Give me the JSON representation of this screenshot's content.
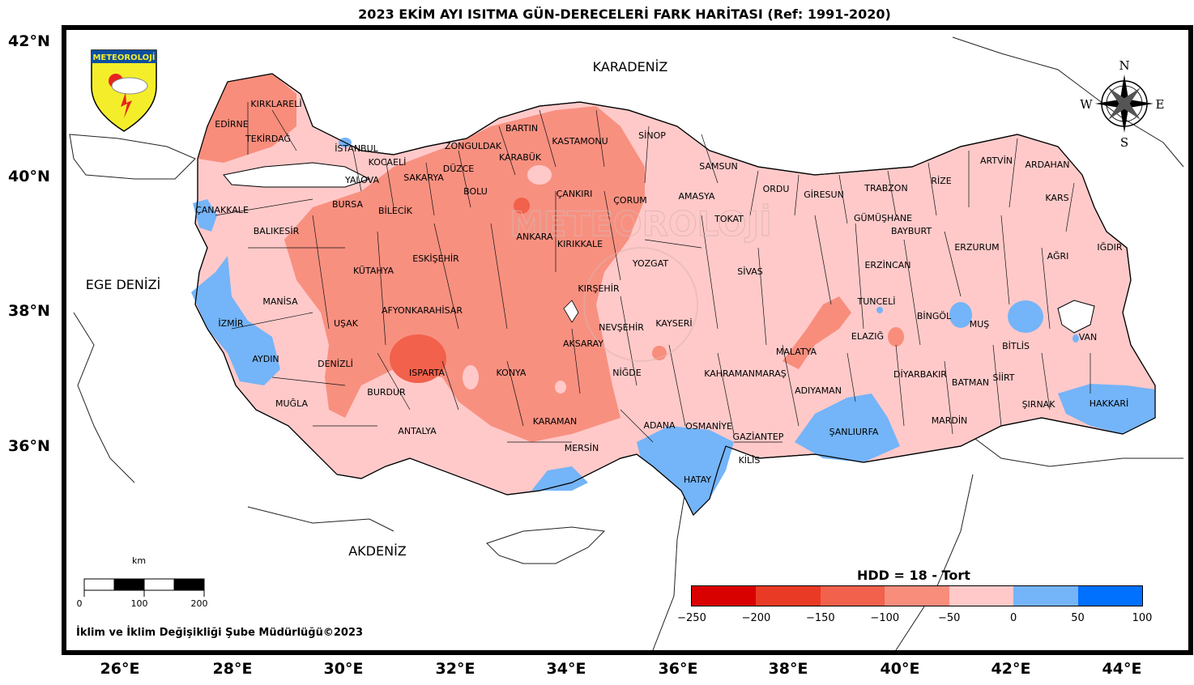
{
  "title": "2023 EKİM AYI ISITMA GÜN-DERECELERİ FARK HARİTASI (Ref: 1991-2020)",
  "logo_text": "METEOROLOJİ",
  "watermark": "METEOROLOJİ",
  "lat_labels": [
    "42°N",
    "40°N",
    "38°N",
    "36°N"
  ],
  "lon_labels": [
    "26°E",
    "28°E",
    "30°E",
    "32°E",
    "34°E",
    "36°E",
    "38°E",
    "40°E",
    "42°E",
    "44°E"
  ],
  "seas": {
    "black_sea": "KARADENİZ",
    "aegean": "EGE DENİZİ",
    "med": "AKDENİZ"
  },
  "compass": {
    "n": "N",
    "s": "S",
    "e": "E",
    "w": "W"
  },
  "provinces": [
    "KIRKLARELİ",
    "EDİRNE",
    "TEKİRDAĞ",
    "İSTANBUL",
    "KOCAELİ",
    "YALOVA",
    "SAKARYA",
    "DÜZCE",
    "ZONGULDAK",
    "BARTIN",
    "KARABÜK",
    "KASTAMONU",
    "SİNOP",
    "SAMSUN",
    "ÇANKIRI",
    "ÇORUM",
    "AMASYA",
    "ORDU",
    "GİRESUN",
    "TRABZON",
    "RİZE",
    "ARTVİN",
    "ARDAHAN",
    "KARS",
    "IĞDIR",
    "ÇANAKKALE",
    "BURSA",
    "BİLECİK",
    "BOLU",
    "BALIKESİR",
    "ANKARA",
    "KIRIKKALE",
    "TOKAT",
    "GÜMÜŞHANE",
    "BAYBURT",
    "ERZURUM",
    "AĞRI",
    "ESKİŞEHİR",
    "KÜTAHYA",
    "YOZGAT",
    "SİVAS",
    "ERZİNCAN",
    "EGE DENİZİ_SKIP",
    "MANİSA",
    "İZMİR",
    "UŞAK",
    "AFYONKARAHİSAR",
    "KIRŞEHİR",
    "TUNCELİ",
    "BİNGÖL",
    "MUŞ",
    "VAN",
    "NEVŞEHİR",
    "KAYSERİ",
    "ELAZIĞ",
    "BİTLİS",
    "AYDIN",
    "DENİZLİ",
    "ISPARTA",
    "KONYA",
    "AKSARAY",
    "MALATYA",
    "NİĞDE",
    "DİYARBAKIR",
    "SİİRT",
    "BATMAN",
    "BURDUR",
    "MUĞLA",
    "KAHRAMANMARAŞ",
    "ADIYAMAN",
    "ŞIRNAK",
    "HAKKARİ",
    "KARAMAN",
    "ANTALYA",
    "ADANA",
    "OSMANİYE",
    "GAZİANTEP",
    "ŞANLIURFA",
    "MARDİN",
    "MERSİN",
    "KİLİS",
    "HATAY"
  ],
  "credit": "İklim ve İklim Değişikliği Şube Müdürlüğü©2023",
  "colorbar": {
    "title": "HDD = 18 - Tort",
    "ticks": [
      "−250",
      "−200",
      "−150",
      "−100",
      "−50",
      "0",
      "50",
      "100"
    ],
    "colors": [
      "#d90000",
      "#e83a24",
      "#f1614b",
      "#f88d7c",
      "#ffc9c9",
      "#74b4f8",
      "#0070ff"
    ]
  },
  "scale": {
    "unit": "km",
    "ticks": [
      "0",
      "100",
      "200"
    ]
  }
}
